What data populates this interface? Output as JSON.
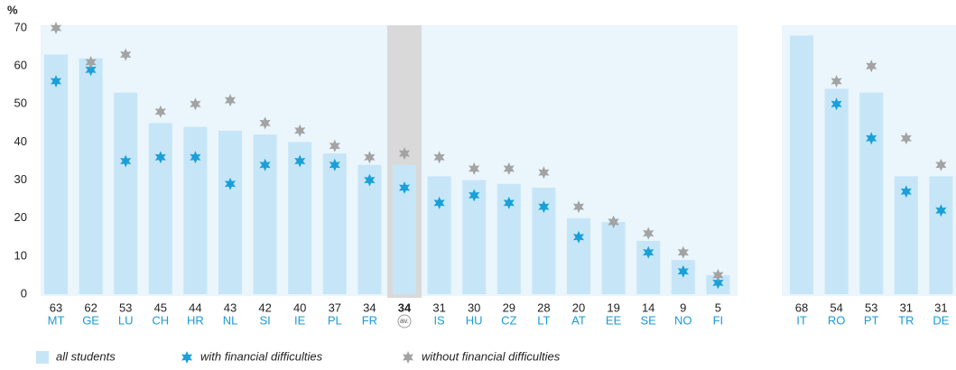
{
  "chart_data": {
    "type": "bar",
    "ylabel": "%",
    "categories": [
      "MT",
      "GE",
      "LU",
      "CH",
      "HR",
      "NL",
      "SI",
      "IE",
      "PL",
      "FR",
      "av.",
      "IS",
      "HU",
      "CZ",
      "LT",
      "AT",
      "EE",
      "SE",
      "NO",
      "FI",
      "IT",
      "RO",
      "PT",
      "TR",
      "DE"
    ],
    "highlight": 10,
    "series": [
      {
        "name": "all students",
        "color": "#c6e6f8",
        "marker": "bar",
        "values": [
          63,
          62,
          53,
          45,
          44,
          43,
          42,
          40,
          37,
          34,
          34,
          31,
          30,
          29,
          28,
          20,
          19,
          14,
          9,
          5,
          68,
          54,
          53,
          31,
          31
        ]
      },
      {
        "name": "with financial difficulties",
        "color": "#1aa0d8",
        "marker": "star",
        "values": [
          56,
          59,
          35,
          36,
          36,
          29,
          34,
          35,
          34,
          30,
          28,
          24,
          26,
          24,
          23,
          15,
          19,
          11,
          6,
          3,
          null,
          50,
          41,
          27,
          22
        ]
      },
      {
        "name": "without financial difficulties",
        "color": "#a3a3a3",
        "marker": "star",
        "values": [
          70,
          61,
          63,
          48,
          50,
          51,
          45,
          43,
          39,
          36,
          37,
          36,
          33,
          33,
          32,
          23,
          19,
          16,
          11,
          5,
          null,
          56,
          60,
          41,
          34
        ]
      }
    ],
    "ylim": [
      0,
      70
    ],
    "yticks": [
      0,
      10,
      20,
      30,
      40,
      50,
      60,
      70
    ]
  }
}
